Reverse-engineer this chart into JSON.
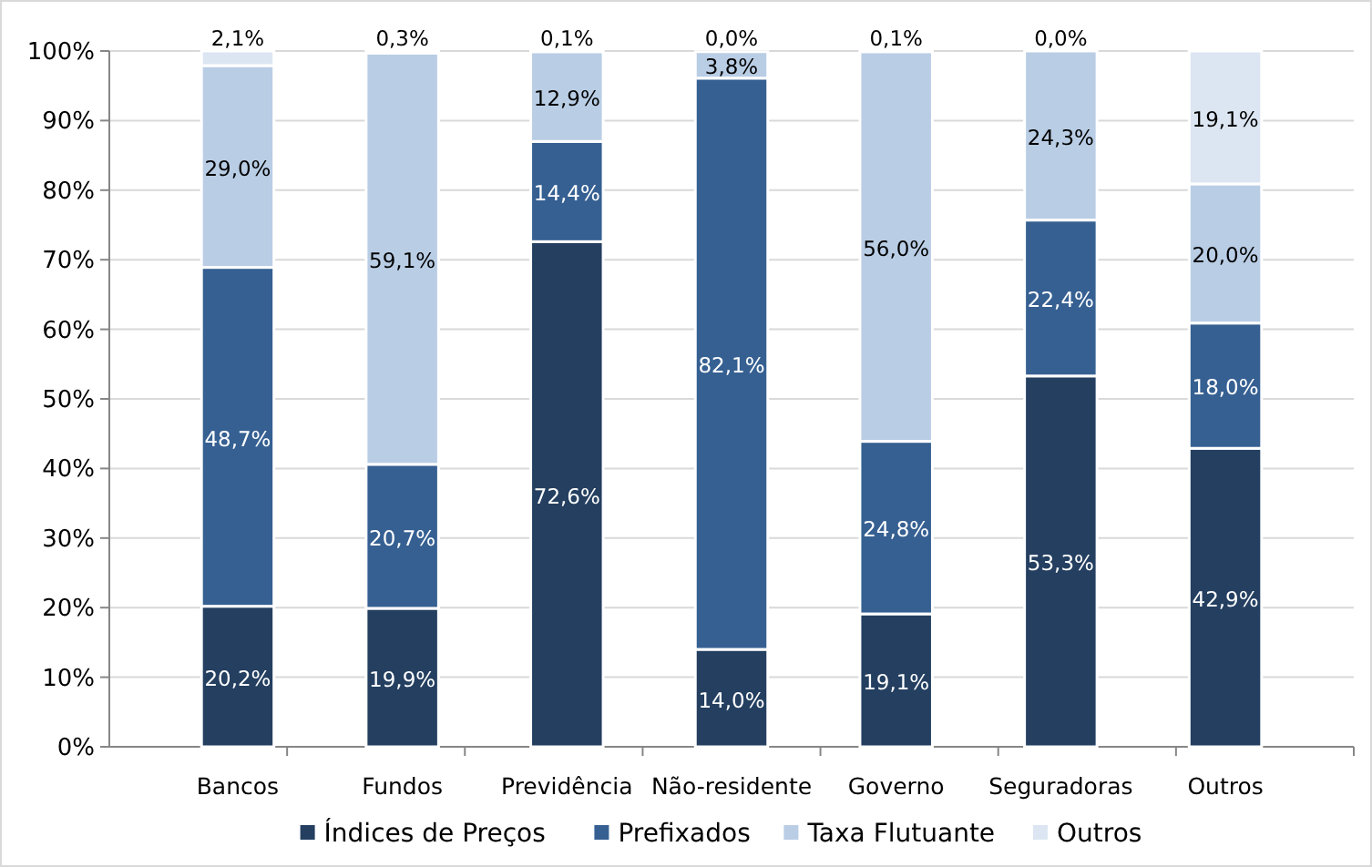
{
  "chart_data": {
    "type": "bar",
    "stacked": true,
    "categories": [
      "Bancos",
      "Fundos",
      "Previdência",
      "Não-residente",
      "Governo",
      "Seguradoras",
      "Outros"
    ],
    "series": [
      {
        "name": "Índices de Preços",
        "color": "#243f60",
        "values": [
          20.2,
          19.9,
          72.6,
          14.0,
          19.1,
          53.3,
          42.9
        ],
        "value_labels": [
          "20,2%",
          "19,9%",
          "72,6%",
          "14,0%",
          "19,1%",
          "53,3%",
          "42,9%"
        ]
      },
      {
        "name": "Prefixados",
        "color": "#366092",
        "values": [
          48.7,
          20.7,
          14.4,
          82.1,
          24.8,
          22.4,
          18.0
        ],
        "value_labels": [
          "48,7%",
          "20,7%",
          "14,4%",
          "82,1%",
          "24,8%",
          "22,4%",
          "18,0%"
        ]
      },
      {
        "name": "Taxa Flutuante",
        "color": "#b9cde5",
        "values": [
          29.0,
          59.1,
          12.9,
          3.8,
          56.0,
          24.3,
          20.0
        ],
        "value_labels": [
          "29,0%",
          "59,1%",
          "12,9%",
          "3,8%",
          "56,0%",
          "24,3%",
          "20,0%"
        ]
      },
      {
        "name": "Outros",
        "color": "#dce6f2",
        "values": [
          2.1,
          0.3,
          0.1,
          0.0,
          0.1,
          0.0,
          19.1
        ],
        "value_labels": [
          "2,1%",
          "0,3%",
          "0,1%",
          "0,0%",
          "0,1%",
          "0,0%",
          "19,1%"
        ]
      }
    ],
    "ylim": [
      0,
      100
    ],
    "yticks": [
      {
        "value": 0,
        "label": "0%"
      },
      {
        "value": 10,
        "label": "10%"
      },
      {
        "value": 20,
        "label": "20%"
      },
      {
        "value": 30,
        "label": "30%"
      },
      {
        "value": 40,
        "label": "40%"
      },
      {
        "value": 50,
        "label": "50%"
      },
      {
        "value": 60,
        "label": "60%"
      },
      {
        "value": 70,
        "label": "70%"
      },
      {
        "value": 80,
        "label": "80%"
      },
      {
        "value": 90,
        "label": "90%"
      },
      {
        "value": 100,
        "label": "100%"
      }
    ],
    "grid": "y",
    "legend": "bottom"
  }
}
